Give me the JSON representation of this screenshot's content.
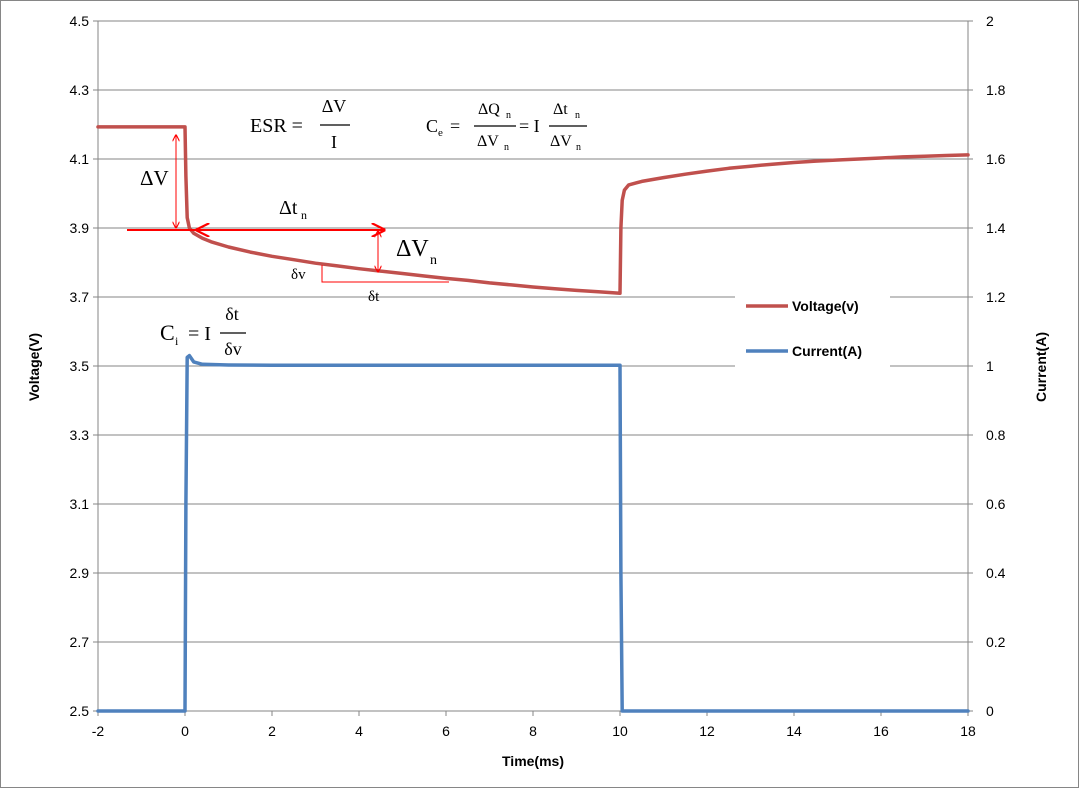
{
  "chart_data": {
    "type": "line",
    "xlabel": "Time(ms)",
    "ylabel": "Voltage(V)",
    "y2label": "Current(A)",
    "xlim": [
      -2,
      18
    ],
    "ylim": [
      2.5,
      4.5
    ],
    "y2lim": [
      0,
      2
    ],
    "xticks": [
      "-2",
      "0",
      "2",
      "4",
      "6",
      "8",
      "10",
      "12",
      "14",
      "16",
      "18"
    ],
    "yticks": [
      "2.5",
      "2.7",
      "2.9",
      "3.1",
      "3.3",
      "3.5",
      "3.7",
      "3.9",
      "4.1",
      "4.3",
      "4.5"
    ],
    "y2ticks": [
      "0",
      "0.2",
      "0.4",
      "0.6",
      "0.8",
      "1",
      "1.2",
      "1.4",
      "1.6",
      "1.8",
      "2"
    ],
    "grid": "horizontal",
    "legend_position": "right",
    "series": [
      {
        "name": "Voltage(v)",
        "axis": "left",
        "color": "#C0504D",
        "x": [
          -2,
          0,
          0.02,
          0.05,
          0.1,
          0.2,
          0.4,
          0.6,
          1,
          1.5,
          2,
          2.5,
          3,
          3.5,
          4,
          4.5,
          5,
          5.5,
          6,
          6.5,
          7,
          7.5,
          8,
          8.5,
          9,
          9.5,
          10,
          10.02,
          10.05,
          10.1,
          10.2,
          10.5,
          11,
          11.5,
          12,
          12.5,
          13,
          13.5,
          14,
          14.5,
          15,
          15.5,
          16,
          16.5,
          17,
          17.5,
          18
        ],
        "values": [
          4.193,
          4.193,
          4.05,
          3.93,
          3.9,
          3.885,
          3.87,
          3.86,
          3.845,
          3.83,
          3.818,
          3.808,
          3.798,
          3.79,
          3.782,
          3.775,
          3.768,
          3.761,
          3.754,
          3.748,
          3.741,
          3.735,
          3.729,
          3.724,
          3.719,
          3.715,
          3.711,
          3.9,
          3.98,
          4.01,
          4.025,
          4.035,
          4.046,
          4.056,
          4.065,
          4.073,
          4.079,
          4.085,
          4.09,
          4.094,
          4.097,
          4.1,
          4.103,
          4.106,
          4.108,
          4.11,
          4.112
        ]
      },
      {
        "name": "Current(A)",
        "axis": "right",
        "color": "#4F81BD",
        "x": [
          -2,
          0,
          0.02,
          0.05,
          0.1,
          0.2,
          0.4,
          1,
          2,
          4,
          6,
          8,
          10,
          10.02,
          10.05,
          10.1,
          12,
          14,
          16,
          18
        ],
        "values": [
          0,
          0,
          0.6,
          1.025,
          1.03,
          1.012,
          1.005,
          1.003,
          1.002,
          1.002,
          1.002,
          1.002,
          1.002,
          0.4,
          0,
          0,
          0,
          0,
          0,
          0
        ]
      }
    ],
    "annotations": {
      "esr_prefix": "ESR =",
      "esr_num": "ΔV",
      "esr_den": "I",
      "ce_prefix": "C",
      "ce_sub": "e",
      "ce_eq": "=",
      "ce_num1": "ΔQ",
      "ce_num1_sub": "n",
      "ce_den1": "ΔV",
      "ce_den1_sub": "n",
      "ce_mid": "= I",
      "ce_num2": "Δt",
      "ce_num2_sub": "n",
      "ce_den2": "ΔV",
      "ce_den2_sub": "n",
      "ci_prefix": "C",
      "ci_sub": "i",
      "ci_mid": "= I",
      "ci_num": "δt",
      "ci_den": "δv",
      "delta_v": "ΔV",
      "delta_tn": "Δt",
      "delta_tn_sub": "n",
      "delta_vn": "ΔV",
      "delta_vn_sub": "n",
      "small_dv": "δv",
      "small_dt": "δt",
      "arrow_color": "#FF0000"
    }
  }
}
